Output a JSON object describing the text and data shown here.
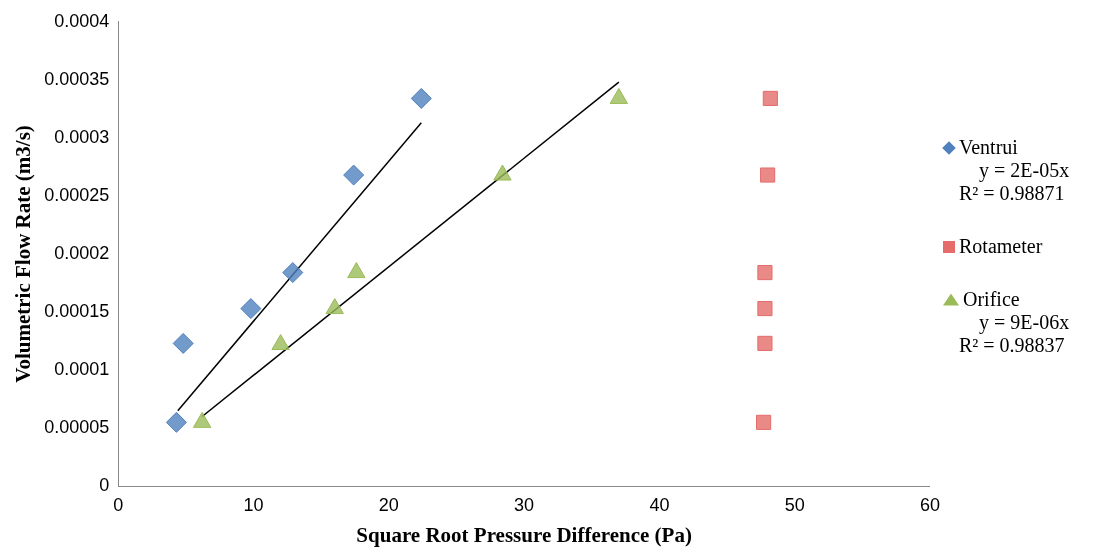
{
  "chart_data": {
    "type": "scatter",
    "xlabel": "Square Root Pressure Difference (Pa)",
    "ylabel": "Volumetric Flow Rate (m3/s)",
    "xlim": [
      0,
      60
    ],
    "xticks": [
      0,
      10,
      20,
      30,
      40,
      50,
      60
    ],
    "ylim": [
      0,
      0.0004
    ],
    "yticks": [
      0,
      {
        "value": 5e-05,
        "label": "0.00005"
      },
      0.0001,
      0.00015,
      0.0002,
      0.00025,
      0.0003,
      0.00035,
      0.0004
    ],
    "grid": false,
    "legend": "right",
    "annotations": [
      "y = 2E-05x",
      "R² = 0.98871",
      "y = 9E-06x",
      "R² = 0.98837"
    ],
    "series": [
      {
        "name": "Ventrui",
        "marker": "diamond",
        "color": "#4f81bd",
        "x": [
          4.3,
          4.8,
          9.8,
          12.9,
          17.4,
          22.4
        ],
        "values": [
          5.5e-05,
          0.000123,
          0.000153,
          0.000184,
          0.000268,
          0.000334
        ]
      },
      {
        "type": "line",
        "marker": "none",
        "color": "#000000",
        "x": [
          4.4,
          22.4
        ],
        "values": [
          6.5e-05,
          0.000313
        ]
      },
      {
        "name": "Rotameter",
        "marker": "square",
        "color": "#e46c6a",
        "x": [
          47.7,
          47.8,
          47.8,
          47.8,
          48.0,
          48.2
        ],
        "values": [
          5.5e-05,
          0.000123,
          0.000153,
          0.000184,
          0.000268,
          0.000334
        ]
      },
      {
        "name": "Orifice",
        "marker": "triangle",
        "color": "#9bbb59",
        "x": [
          6.2,
          12.0,
          16.0,
          17.6,
          28.4,
          37.0
        ],
        "values": [
          5.5e-05,
          0.000122,
          0.000153,
          0.000184,
          0.000268,
          0.000334
        ]
      },
      {
        "type": "line",
        "marker": "none",
        "color": "#000000",
        "x": [
          6.2,
          37.0
        ],
        "values": [
          6e-05,
          0.000348
        ]
      }
    ]
  }
}
